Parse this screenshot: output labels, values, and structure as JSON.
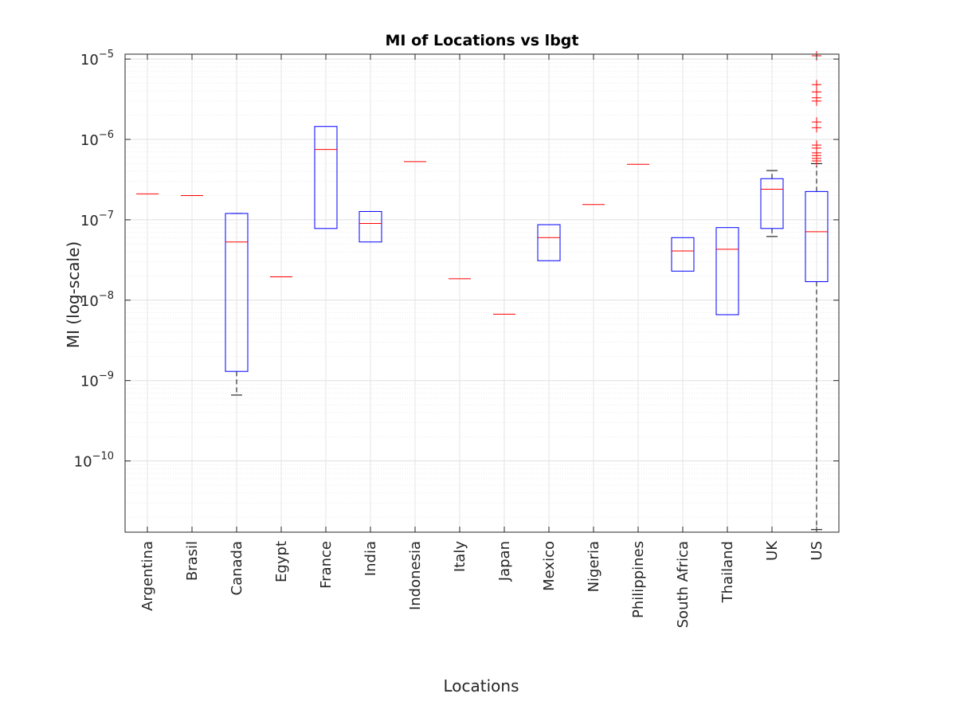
{
  "chart_data": {
    "type": "boxplot",
    "title": "MI of Locations vs lbgt",
    "xlabel": "Locations",
    "ylabel": "MI (log-scale)",
    "yscale": "log",
    "ylim": [
      1.3e-11,
      1.15e-05
    ],
    "grid": true,
    "minor_grid": true,
    "y_ticks": [
      {
        "value": 1e-10,
        "base": "10",
        "exp": "−10"
      },
      {
        "value": 1e-09,
        "base": "10",
        "exp": "−9"
      },
      {
        "value": 1e-08,
        "base": "10",
        "exp": "−8"
      },
      {
        "value": 1e-07,
        "base": "10",
        "exp": "−7"
      },
      {
        "value": 1e-06,
        "base": "10",
        "exp": "−6"
      },
      {
        "value": 1e-05,
        "base": "10",
        "exp": "−5"
      }
    ],
    "categories": [
      "Argentina",
      "Brasil",
      "Canada",
      "Egypt",
      "France",
      "India",
      "Indonesia",
      "Italy",
      "Japan",
      "Mexico",
      "Nigeria",
      "Philippines",
      "South Africa",
      "Thailand",
      "UK",
      "US"
    ],
    "boxes": [
      {
        "category": "Argentina",
        "median": 2.1e-07
      },
      {
        "category": "Brasil",
        "median": 2e-07
      },
      {
        "category": "Canada",
        "q1": 1.3e-09,
        "median": 5.3e-08,
        "q3": 1.2e-07,
        "whisker_low": 6.6e-10,
        "whisker_high": 1.2e-07
      },
      {
        "category": "Egypt",
        "median": 1.95e-08
      },
      {
        "category": "France",
        "q1": 7.8e-08,
        "median": 7.5e-07,
        "q3": 1.45e-06
      },
      {
        "category": "India",
        "q1": 5.3e-08,
        "median": 9e-08,
        "q3": 1.27e-07
      },
      {
        "category": "Indonesia",
        "median": 5.3e-07
      },
      {
        "category": "Italy",
        "median": 1.85e-08
      },
      {
        "category": "Japan",
        "median": 6.7e-09
      },
      {
        "category": "Mexico",
        "q1": 3.1e-08,
        "median": 6e-08,
        "q3": 8.7e-08
      },
      {
        "category": "Nigeria",
        "median": 1.55e-07
      },
      {
        "category": "Philippines",
        "median": 4.9e-07
      },
      {
        "category": "South Africa",
        "q1": 2.3e-08,
        "median": 4.1e-08,
        "q3": 6e-08
      },
      {
        "category": "Thailand",
        "q1": 6.6e-09,
        "median": 4.3e-08,
        "q3": 8e-08
      },
      {
        "category": "UK",
        "q1": 7.8e-08,
        "median": 2.4e-07,
        "q3": 3.25e-07,
        "whisker_low": 6.2e-08,
        "whisker_high": 4.1e-07
      },
      {
        "category": "US",
        "q1": 1.7e-08,
        "median": 7.1e-08,
        "q3": 2.25e-07,
        "whisker_low": 1.4e-11,
        "whisker_high": 5e-07,
        "outliers": [
          1.1e-05,
          4.8e-06,
          3.9e-06,
          3.3e-06,
          3e-06,
          1.65e-06,
          1.4e-06,
          8.5e-07,
          7.8e-07,
          6.8e-07,
          6.3e-07,
          5.8e-07,
          5.4e-07
        ]
      }
    ],
    "colors": {
      "box": "#0000ff",
      "median": "#ff0000",
      "whisker": "#000000",
      "outlier": "#ff0000",
      "grid": "#e6e6e6",
      "axis": "#262626"
    }
  }
}
